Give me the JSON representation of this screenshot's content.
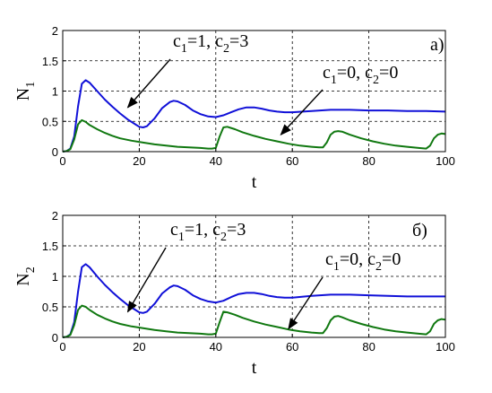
{
  "chart_data": [
    {
      "type": "line",
      "panel_label": "а)",
      "xlabel": "t",
      "ylabel": "N",
      "ylabel_sub": "1",
      "xlim": [
        0,
        100
      ],
      "ylim": [
        0,
        2
      ],
      "xticks": [
        "0",
        "20",
        "40",
        "60",
        "80",
        "100"
      ],
      "yticks": [
        "0",
        "0.5",
        "1",
        "1.5",
        "2"
      ],
      "grid": true,
      "annotations": [
        {
          "parts": [
            [
              "c",
              "1"
            ],
            [
              "=1, c",
              "2"
            ],
            [
              "=3",
              ""
            ]
          ],
          "points_to": [
            17,
            0.73
          ]
        },
        {
          "parts": [
            [
              "c",
              "1"
            ],
            [
              "=0, c",
              "2"
            ],
            [
              "=0",
              ""
            ]
          ],
          "points_to": [
            57,
            0.28
          ]
        }
      ],
      "series": [
        {
          "color": "#1010d8",
          "x": [
            0,
            1,
            2,
            3,
            4,
            5,
            6,
            7,
            9,
            11,
            13,
            15,
            17,
            19,
            20,
            21,
            22,
            24,
            26,
            28,
            29,
            30,
            32,
            34,
            36,
            38,
            40,
            42,
            44,
            46,
            48,
            50,
            52,
            54,
            56,
            58,
            60,
            65,
            70,
            75,
            80,
            85,
            90,
            95,
            100
          ],
          "values": [
            0,
            0.01,
            0.05,
            0.25,
            0.75,
            1.12,
            1.18,
            1.14,
            1.0,
            0.86,
            0.74,
            0.63,
            0.53,
            0.45,
            0.41,
            0.4,
            0.42,
            0.55,
            0.72,
            0.82,
            0.84,
            0.83,
            0.77,
            0.68,
            0.62,
            0.58,
            0.57,
            0.6,
            0.65,
            0.7,
            0.73,
            0.73,
            0.71,
            0.68,
            0.66,
            0.65,
            0.65,
            0.67,
            0.69,
            0.69,
            0.68,
            0.68,
            0.67,
            0.67,
            0.66
          ]
        },
        {
          "color": "#107810",
          "x": [
            0,
            1,
            2,
            3,
            4,
            5,
            6,
            7,
            9,
            11,
            13,
            15,
            18,
            21,
            24,
            27,
            30,
            33,
            36,
            38,
            39,
            40,
            41,
            42,
            43,
            45,
            47,
            50,
            53,
            56,
            59,
            62,
            65,
            67,
            68,
            69,
            70,
            71,
            72,
            73,
            75,
            78,
            81,
            84,
            87,
            90,
            93,
            95,
            96,
            97,
            98,
            99,
            100
          ],
          "values": [
            0,
            0.01,
            0.04,
            0.2,
            0.45,
            0.52,
            0.49,
            0.44,
            0.37,
            0.31,
            0.26,
            0.22,
            0.18,
            0.15,
            0.12,
            0.1,
            0.08,
            0.07,
            0.06,
            0.05,
            0.05,
            0.06,
            0.25,
            0.4,
            0.41,
            0.37,
            0.32,
            0.26,
            0.21,
            0.17,
            0.13,
            0.1,
            0.08,
            0.07,
            0.07,
            0.15,
            0.28,
            0.33,
            0.34,
            0.33,
            0.28,
            0.22,
            0.17,
            0.13,
            0.1,
            0.08,
            0.06,
            0.05,
            0.1,
            0.22,
            0.28,
            0.3,
            0.29
          ]
        }
      ]
    },
    {
      "type": "line",
      "panel_label": "б)",
      "xlabel": "t",
      "ylabel": "N",
      "ylabel_sub": "2",
      "xlim": [
        0,
        100
      ],
      "ylim": [
        0,
        2
      ],
      "xticks": [
        "0",
        "20",
        "40",
        "60",
        "80",
        "100"
      ],
      "yticks": [
        "0",
        "0.5",
        "1",
        "1.5",
        "2"
      ],
      "grid": true,
      "annotations": [
        {
          "parts": [
            [
              "c",
              "1"
            ],
            [
              "=1, c",
              "2"
            ],
            [
              "=3",
              ""
            ]
          ],
          "points_to": [
            17,
            0.42
          ]
        },
        {
          "parts": [
            [
              "c",
              "1"
            ],
            [
              "=0, c",
              "2"
            ],
            [
              "=0",
              ""
            ]
          ],
          "points_to": [
            59,
            0.14
          ]
        }
      ],
      "series": [
        {
          "color": "#1010d8",
          "x": [
            0,
            1,
            2,
            3,
            4,
            5,
            6,
            7,
            9,
            11,
            13,
            15,
            17,
            19,
            20,
            21,
            22,
            24,
            26,
            28,
            29,
            30,
            32,
            34,
            36,
            38,
            40,
            42,
            44,
            46,
            48,
            50,
            52,
            54,
            56,
            58,
            60,
            65,
            70,
            75,
            80,
            85,
            90,
            95,
            100
          ],
          "values": [
            0,
            0.01,
            0.05,
            0.25,
            0.75,
            1.15,
            1.2,
            1.15,
            1.0,
            0.86,
            0.74,
            0.63,
            0.53,
            0.45,
            0.41,
            0.4,
            0.42,
            0.55,
            0.72,
            0.82,
            0.85,
            0.84,
            0.78,
            0.69,
            0.63,
            0.59,
            0.57,
            0.6,
            0.66,
            0.71,
            0.73,
            0.73,
            0.71,
            0.68,
            0.66,
            0.65,
            0.65,
            0.68,
            0.7,
            0.7,
            0.69,
            0.68,
            0.67,
            0.67,
            0.67
          ]
        },
        {
          "color": "#107810",
          "x": [
            0,
            1,
            2,
            3,
            4,
            5,
            6,
            7,
            9,
            11,
            13,
            15,
            18,
            21,
            24,
            27,
            30,
            33,
            36,
            38,
            39,
            40,
            41,
            42,
            43,
            45,
            47,
            50,
            53,
            56,
            59,
            62,
            65,
            67,
            68,
            69,
            70,
            71,
            72,
            73,
            75,
            78,
            81,
            84,
            87,
            90,
            93,
            95,
            96,
            97,
            98,
            99,
            100
          ],
          "values": [
            0,
            0.01,
            0.04,
            0.2,
            0.45,
            0.52,
            0.5,
            0.45,
            0.37,
            0.31,
            0.26,
            0.22,
            0.18,
            0.15,
            0.12,
            0.1,
            0.08,
            0.07,
            0.06,
            0.05,
            0.05,
            0.06,
            0.25,
            0.42,
            0.41,
            0.37,
            0.32,
            0.26,
            0.21,
            0.17,
            0.13,
            0.1,
            0.08,
            0.07,
            0.07,
            0.15,
            0.28,
            0.34,
            0.35,
            0.33,
            0.28,
            0.22,
            0.17,
            0.13,
            0.1,
            0.08,
            0.06,
            0.05,
            0.1,
            0.22,
            0.28,
            0.3,
            0.29
          ]
        }
      ]
    }
  ]
}
